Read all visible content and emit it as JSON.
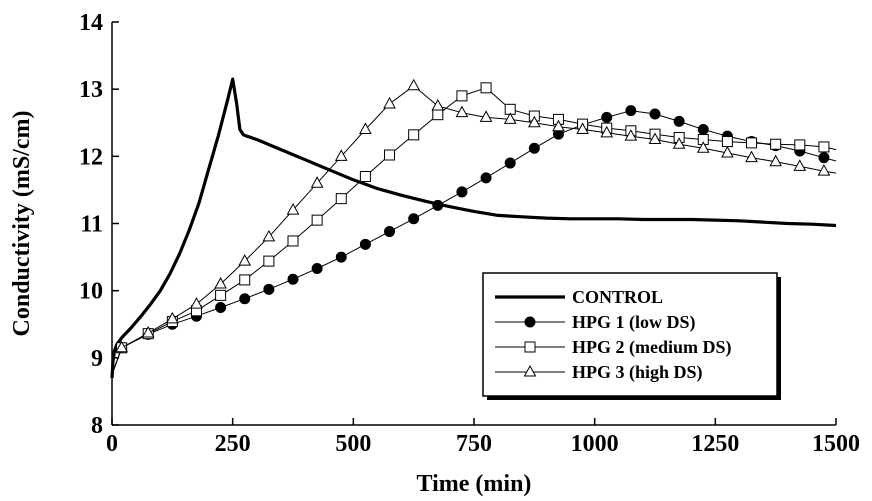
{
  "chart_data": {
    "type": "line",
    "xlabel": "Time (min)",
    "ylabel": "Conductivity (mS/cm)",
    "xlim": [
      0,
      1500
    ],
    "ylim": [
      8,
      14
    ],
    "xticks": [
      0,
      250,
      500,
      750,
      1000,
      1250,
      1500
    ],
    "yticks": [
      8,
      9,
      10,
      11,
      12,
      13,
      14
    ],
    "grid": false,
    "legend_position": "lower-right",
    "series": [
      {
        "name": "CONTROL",
        "marker": "none",
        "line_width": "thick",
        "color": "#000000",
        "x": [
          0,
          2,
          5,
          10,
          20,
          40,
          60,
          80,
          100,
          120,
          140,
          160,
          180,
          200,
          220,
          240,
          250,
          258,
          265,
          272,
          280,
          300,
          350,
          400,
          450,
          500,
          550,
          600,
          650,
          700,
          750,
          800,
          850,
          900,
          950,
          1000,
          1050,
          1100,
          1150,
          1200,
          1250,
          1300,
          1350,
          1400,
          1450,
          1500
        ],
        "y": [
          8.7,
          8.95,
          9.1,
          9.2,
          9.3,
          9.45,
          9.62,
          9.8,
          10.0,
          10.25,
          10.55,
          10.9,
          11.3,
          11.8,
          12.3,
          12.85,
          13.15,
          12.8,
          12.4,
          12.32,
          12.3,
          12.25,
          12.1,
          11.95,
          11.8,
          11.65,
          11.52,
          11.42,
          11.33,
          11.25,
          11.18,
          11.12,
          11.1,
          11.08,
          11.07,
          11.07,
          11.07,
          11.06,
          11.06,
          11.06,
          11.05,
          11.04,
          11.02,
          11.0,
          10.99,
          10.97
        ]
      },
      {
        "name": "HPG 1 (low DS)",
        "marker": "filled-circle",
        "line_width": "thin",
        "color": "#000000",
        "x": [
          0,
          20,
          75,
          125,
          175,
          225,
          275,
          325,
          375,
          425,
          475,
          525,
          575,
          625,
          675,
          725,
          775,
          825,
          875,
          925,
          975,
          1025,
          1075,
          1125,
          1175,
          1225,
          1275,
          1325,
          1375,
          1425,
          1475,
          1500
        ],
        "y": [
          8.75,
          9.15,
          9.35,
          9.5,
          9.62,
          9.75,
          9.88,
          10.02,
          10.17,
          10.33,
          10.5,
          10.69,
          10.88,
          11.07,
          11.27,
          11.47,
          11.68,
          11.9,
          12.12,
          12.33,
          12.47,
          12.58,
          12.68,
          12.63,
          12.52,
          12.4,
          12.3,
          12.22,
          12.16,
          12.08,
          11.98,
          11.93
        ]
      },
      {
        "name": "HPG 2 (medium DS)",
        "marker": "open-square",
        "line_width": "thin",
        "color": "#000000",
        "x": [
          0,
          20,
          75,
          125,
          175,
          225,
          275,
          325,
          375,
          425,
          475,
          525,
          575,
          625,
          675,
          725,
          775,
          825,
          875,
          925,
          975,
          1025,
          1075,
          1125,
          1175,
          1225,
          1275,
          1325,
          1375,
          1425,
          1475,
          1500
        ],
        "y": [
          8.75,
          9.15,
          9.36,
          9.54,
          9.7,
          9.93,
          10.16,
          10.44,
          10.74,
          11.05,
          11.37,
          11.7,
          12.02,
          12.32,
          12.62,
          12.9,
          13.02,
          12.7,
          12.6,
          12.55,
          12.48,
          12.42,
          12.38,
          12.33,
          12.28,
          12.25,
          12.22,
          12.2,
          12.18,
          12.17,
          12.14,
          12.1
        ]
      },
      {
        "name": "HPG 3 (high DS)",
        "marker": "open-triangle",
        "line_width": "thin",
        "color": "#000000",
        "x": [
          0,
          20,
          75,
          125,
          175,
          225,
          275,
          325,
          375,
          425,
          475,
          525,
          575,
          625,
          675,
          725,
          775,
          825,
          875,
          925,
          975,
          1025,
          1075,
          1125,
          1175,
          1225,
          1275,
          1325,
          1375,
          1425,
          1475,
          1500
        ],
        "y": [
          8.75,
          9.15,
          9.37,
          9.58,
          9.8,
          10.1,
          10.44,
          10.8,
          11.2,
          11.6,
          12.0,
          12.4,
          12.78,
          13.05,
          12.75,
          12.65,
          12.58,
          12.55,
          12.5,
          12.44,
          12.4,
          12.35,
          12.3,
          12.25,
          12.18,
          12.12,
          12.05,
          11.98,
          11.92,
          11.85,
          11.78,
          11.75
        ]
      }
    ]
  }
}
